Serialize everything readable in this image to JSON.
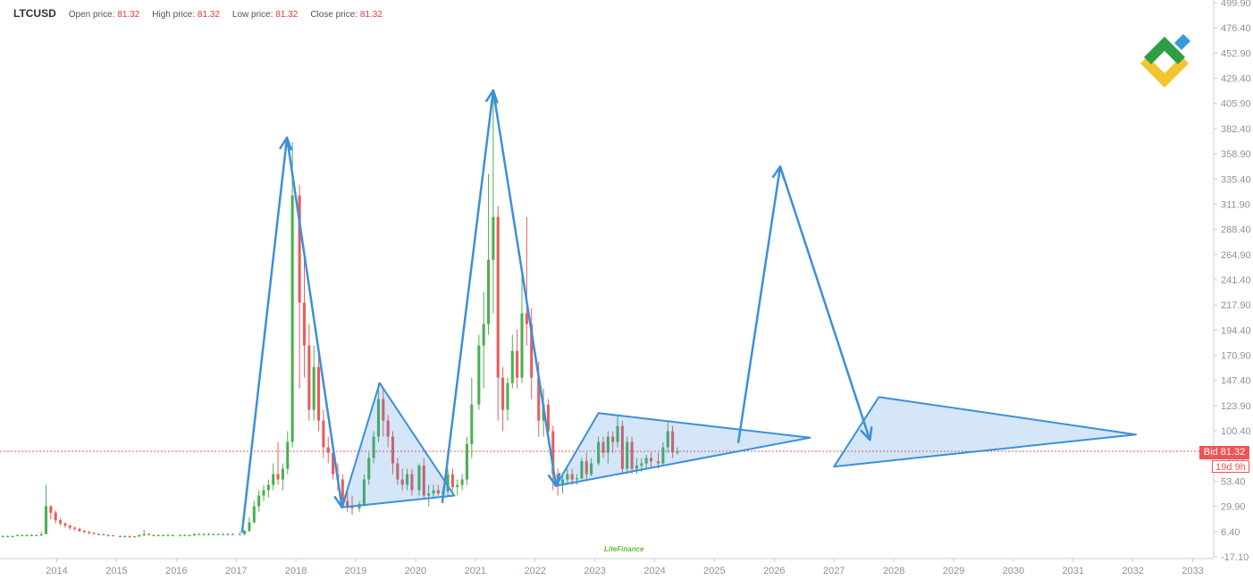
{
  "header": {
    "symbol": "LTCUSD",
    "open_label": "Open price:",
    "open_value": "81.32",
    "high_label": "High price:",
    "high_value": "81.32",
    "low_label": "Low price:",
    "low_value": "81.32",
    "close_label": "Close price:",
    "close_value": "81.32"
  },
  "price_tags": {
    "bid": "Bid 81.32",
    "countdown": "19d 9h"
  },
  "watermark": "LiteFinance",
  "colors": {
    "up": "#4caf50",
    "down": "#e85c5c",
    "drawing": "#3d8fd9",
    "fill": "rgba(61,143,217,0.22)",
    "bid_line": "#f05454"
  },
  "chart_data": {
    "type": "candlestick",
    "symbol": "LTCUSD",
    "ylim": [
      -17.1,
      499.9
    ],
    "yticks": [
      "-17.10",
      "6.40",
      "29.90",
      "53.40",
      "76.90",
      "100.40",
      "123.90",
      "147.40",
      "170.90",
      "194.40",
      "217.90",
      "241.40",
      "264.90",
      "288.40",
      "311.90",
      "335.40",
      "358.90",
      "382.40",
      "405.90",
      "429.40",
      "452.90",
      "476.40",
      "499.90"
    ],
    "xticks": [
      "2014",
      "2015",
      "2016",
      "2017",
      "2018",
      "2019",
      "2020",
      "2021",
      "2022",
      "2023",
      "2024",
      "2025",
      "2026",
      "2027",
      "2028",
      "2029",
      "2030",
      "2031",
      "2032",
      "2033"
    ],
    "xlim": [
      2013.05,
      2033.35
    ],
    "bid_price": 81.32,
    "candles_ohlc": [
      [
        2013.1,
        2,
        3,
        1,
        2
      ],
      [
        2013.18,
        2,
        3,
        1,
        2
      ],
      [
        2013.26,
        2,
        3,
        1,
        2
      ],
      [
        2013.34,
        3,
        4,
        2,
        3
      ],
      [
        2013.42,
        3,
        4,
        2,
        3
      ],
      [
        2013.5,
        3,
        4,
        2,
        3
      ],
      [
        2013.58,
        3,
        4,
        2,
        3
      ],
      [
        2013.66,
        3,
        4,
        2,
        3
      ],
      [
        2013.74,
        3,
        6,
        2,
        4
      ],
      [
        2013.82,
        4,
        50,
        4,
        30
      ],
      [
        2013.9,
        30,
        31,
        18,
        24
      ],
      [
        2013.98,
        24,
        26,
        14,
        17
      ],
      [
        2014.06,
        17,
        19,
        12,
        14
      ],
      [
        2014.14,
        14,
        15,
        10,
        12
      ],
      [
        2014.22,
        12,
        13,
        8,
        10
      ],
      [
        2014.3,
        10,
        11,
        7,
        9
      ],
      [
        2014.38,
        9,
        10,
        6,
        7
      ],
      [
        2014.46,
        7,
        8,
        5,
        6
      ],
      [
        2014.54,
        6,
        7,
        4,
        5
      ],
      [
        2014.62,
        5,
        6,
        4,
        4
      ],
      [
        2014.7,
        4,
        5,
        3,
        4
      ],
      [
        2014.78,
        4,
        4,
        3,
        3
      ],
      [
        2014.86,
        3,
        4,
        2,
        3
      ],
      [
        2014.94,
        3,
        3,
        2,
        2
      ],
      [
        2015.06,
        2,
        3,
        1,
        2
      ],
      [
        2015.14,
        2,
        3,
        1,
        2
      ],
      [
        2015.22,
        2,
        3,
        1,
        1
      ],
      [
        2015.3,
        1,
        2,
        1,
        2
      ],
      [
        2015.38,
        2,
        4,
        1,
        3
      ],
      [
        2015.46,
        3,
        8,
        2,
        4
      ],
      [
        2015.54,
        4,
        5,
        3,
        3
      ],
      [
        2015.62,
        3,
        4,
        2,
        3
      ],
      [
        2015.7,
        3,
        4,
        2,
        3
      ],
      [
        2015.78,
        3,
        4,
        2,
        3
      ],
      [
        2015.86,
        3,
        4,
        2,
        3
      ],
      [
        2015.94,
        3,
        4,
        2,
        3
      ],
      [
        2016.06,
        3,
        4,
        2,
        3
      ],
      [
        2016.14,
        3,
        4,
        2,
        3
      ],
      [
        2016.22,
        3,
        4,
        2,
        3
      ],
      [
        2016.3,
        3,
        5,
        2,
        4
      ],
      [
        2016.38,
        4,
        5,
        3,
        4
      ],
      [
        2016.46,
        4,
        5,
        3,
        4
      ],
      [
        2016.54,
        4,
        5,
        3,
        4
      ],
      [
        2016.62,
        4,
        5,
        3,
        4
      ],
      [
        2016.7,
        4,
        5,
        3,
        4
      ],
      [
        2016.78,
        4,
        5,
        3,
        4
      ],
      [
        2016.86,
        4,
        5,
        3,
        4
      ],
      [
        2016.94,
        4,
        5,
        3,
        4
      ],
      [
        2017.06,
        4,
        6,
        3,
        4
      ],
      [
        2017.14,
        4,
        8,
        3,
        7
      ],
      [
        2017.22,
        7,
        20,
        6,
        15
      ],
      [
        2017.3,
        15,
        35,
        14,
        30
      ],
      [
        2017.38,
        30,
        45,
        25,
        40
      ],
      [
        2017.46,
        40,
        50,
        35,
        45
      ],
      [
        2017.54,
        45,
        55,
        38,
        50
      ],
      [
        2017.62,
        50,
        70,
        45,
        60
      ],
      [
        2017.7,
        60,
        90,
        50,
        55
      ],
      [
        2017.78,
        55,
        70,
        45,
        65
      ],
      [
        2017.86,
        65,
        100,
        60,
        90
      ],
      [
        2017.94,
        90,
        370,
        85,
        320
      ],
      [
        2018.06,
        320,
        330,
        140,
        220
      ],
      [
        2018.14,
        220,
        260,
        150,
        180
      ],
      [
        2018.22,
        180,
        200,
        110,
        120
      ],
      [
        2018.3,
        120,
        180,
        110,
        160
      ],
      [
        2018.38,
        160,
        170,
        100,
        110
      ],
      [
        2018.46,
        110,
        120,
        75,
        85
      ],
      [
        2018.54,
        85,
        95,
        70,
        80
      ],
      [
        2018.62,
        80,
        90,
        55,
        60
      ],
      [
        2018.7,
        60,
        70,
        45,
        55
      ],
      [
        2018.78,
        55,
        60,
        30,
        35
      ],
      [
        2018.86,
        35,
        45,
        25,
        30
      ],
      [
        2018.94,
        30,
        40,
        22,
        28
      ],
      [
        2019.06,
        28,
        35,
        25,
        32
      ],
      [
        2019.14,
        32,
        60,
        30,
        55
      ],
      [
        2019.22,
        55,
        80,
        50,
        75
      ],
      [
        2019.3,
        75,
        100,
        70,
        95
      ],
      [
        2019.38,
        95,
        145,
        90,
        130
      ],
      [
        2019.46,
        130,
        140,
        95,
        110
      ],
      [
        2019.54,
        110,
        115,
        85,
        95
      ],
      [
        2019.62,
        95,
        100,
        60,
        70
      ],
      [
        2019.7,
        70,
        75,
        50,
        55
      ],
      [
        2019.78,
        55,
        65,
        45,
        50
      ],
      [
        2019.86,
        50,
        65,
        45,
        60
      ],
      [
        2019.94,
        60,
        65,
        40,
        45
      ],
      [
        2020.06,
        45,
        70,
        40,
        68
      ],
      [
        2020.14,
        68,
        75,
        38,
        40
      ],
      [
        2020.22,
        40,
        50,
        30,
        42
      ],
      [
        2020.3,
        42,
        50,
        38,
        45
      ],
      [
        2020.38,
        45,
        50,
        40,
        42
      ],
      [
        2020.46,
        42,
        48,
        38,
        44
      ],
      [
        2020.54,
        44,
        65,
        40,
        60
      ],
      [
        2020.62,
        60,
        65,
        45,
        48
      ],
      [
        2020.7,
        48,
        55,
        40,
        50
      ],
      [
        2020.78,
        50,
        60,
        45,
        55
      ],
      [
        2020.86,
        55,
        95,
        50,
        88
      ],
      [
        2020.94,
        88,
        150,
        75,
        125
      ],
      [
        2021.06,
        125,
        190,
        120,
        180
      ],
      [
        2021.14,
        180,
        230,
        140,
        200
      ],
      [
        2021.22,
        200,
        340,
        190,
        260
      ],
      [
        2021.3,
        260,
        410,
        210,
        300
      ],
      [
        2021.38,
        300,
        310,
        110,
        150
      ],
      [
        2021.46,
        150,
        160,
        100,
        120
      ],
      [
        2021.54,
        120,
        150,
        110,
        145
      ],
      [
        2021.62,
        145,
        190,
        140,
        175
      ],
      [
        2021.7,
        175,
        195,
        140,
        150
      ],
      [
        2021.78,
        150,
        250,
        145,
        210
      ],
      [
        2021.86,
        210,
        300,
        180,
        200
      ],
      [
        2021.94,
        200,
        215,
        130,
        150
      ],
      [
        2022.06,
        150,
        165,
        95,
        110
      ],
      [
        2022.14,
        110,
        140,
        95,
        125
      ],
      [
        2022.22,
        125,
        130,
        95,
        100
      ],
      [
        2022.3,
        100,
        105,
        45,
        60
      ],
      [
        2022.38,
        60,
        65,
        40,
        50
      ],
      [
        2022.46,
        50,
        60,
        42,
        55
      ],
      [
        2022.54,
        55,
        65,
        50,
        60
      ],
      [
        2022.62,
        60,
        65,
        50,
        55
      ],
      [
        2022.7,
        55,
        60,
        50,
        56
      ],
      [
        2022.78,
        56,
        75,
        55,
        72
      ],
      [
        2022.86,
        72,
        80,
        55,
        60
      ],
      [
        2022.94,
        60,
        75,
        58,
        70
      ],
      [
        2023.06,
        70,
        95,
        68,
        90
      ],
      [
        2023.14,
        90,
        95,
        75,
        80
      ],
      [
        2023.22,
        80,
        100,
        70,
        95
      ],
      [
        2023.3,
        95,
        100,
        80,
        90
      ],
      [
        2023.38,
        90,
        115,
        85,
        105
      ],
      [
        2023.46,
        105,
        110,
        60,
        65
      ],
      [
        2023.54,
        65,
        95,
        60,
        90
      ],
      [
        2023.62,
        90,
        95,
        60,
        65
      ],
      [
        2023.7,
        65,
        75,
        60,
        68
      ],
      [
        2023.78,
        68,
        75,
        62,
        70
      ],
      [
        2023.86,
        70,
        78,
        65,
        75
      ],
      [
        2023.94,
        75,
        80,
        65,
        72
      ],
      [
        2024.06,
        72,
        80,
        65,
        70
      ],
      [
        2024.14,
        70,
        90,
        68,
        85
      ],
      [
        2024.22,
        85,
        110,
        80,
        100
      ],
      [
        2024.3,
        100,
        105,
        75,
        80
      ],
      [
        2024.38,
        80,
        85,
        78,
        81.32
      ]
    ],
    "drawings": {
      "arrow_paths": [
        [
          [
            2017.1,
            6
          ],
          [
            2017.85,
            374
          ],
          [
            2018.77,
            29
          ]
        ],
        [
          [
            2020.45,
            34
          ],
          [
            2021.3,
            418
          ],
          [
            2022.35,
            49
          ]
        ],
        [
          [
            2025.4,
            90
          ],
          [
            2026.1,
            347
          ],
          [
            2027.6,
            92
          ]
        ]
      ],
      "triangles": [
        [
          [
            2018.77,
            29
          ],
          [
            2019.4,
            145
          ],
          [
            2020.65,
            40
          ]
        ],
        [
          [
            2022.35,
            49
          ],
          [
            2023.06,
            117
          ],
          [
            2026.6,
            94
          ]
        ],
        [
          [
            2027.0,
            67
          ],
          [
            2027.75,
            132
          ],
          [
            2032.05,
            97
          ]
        ]
      ]
    }
  }
}
